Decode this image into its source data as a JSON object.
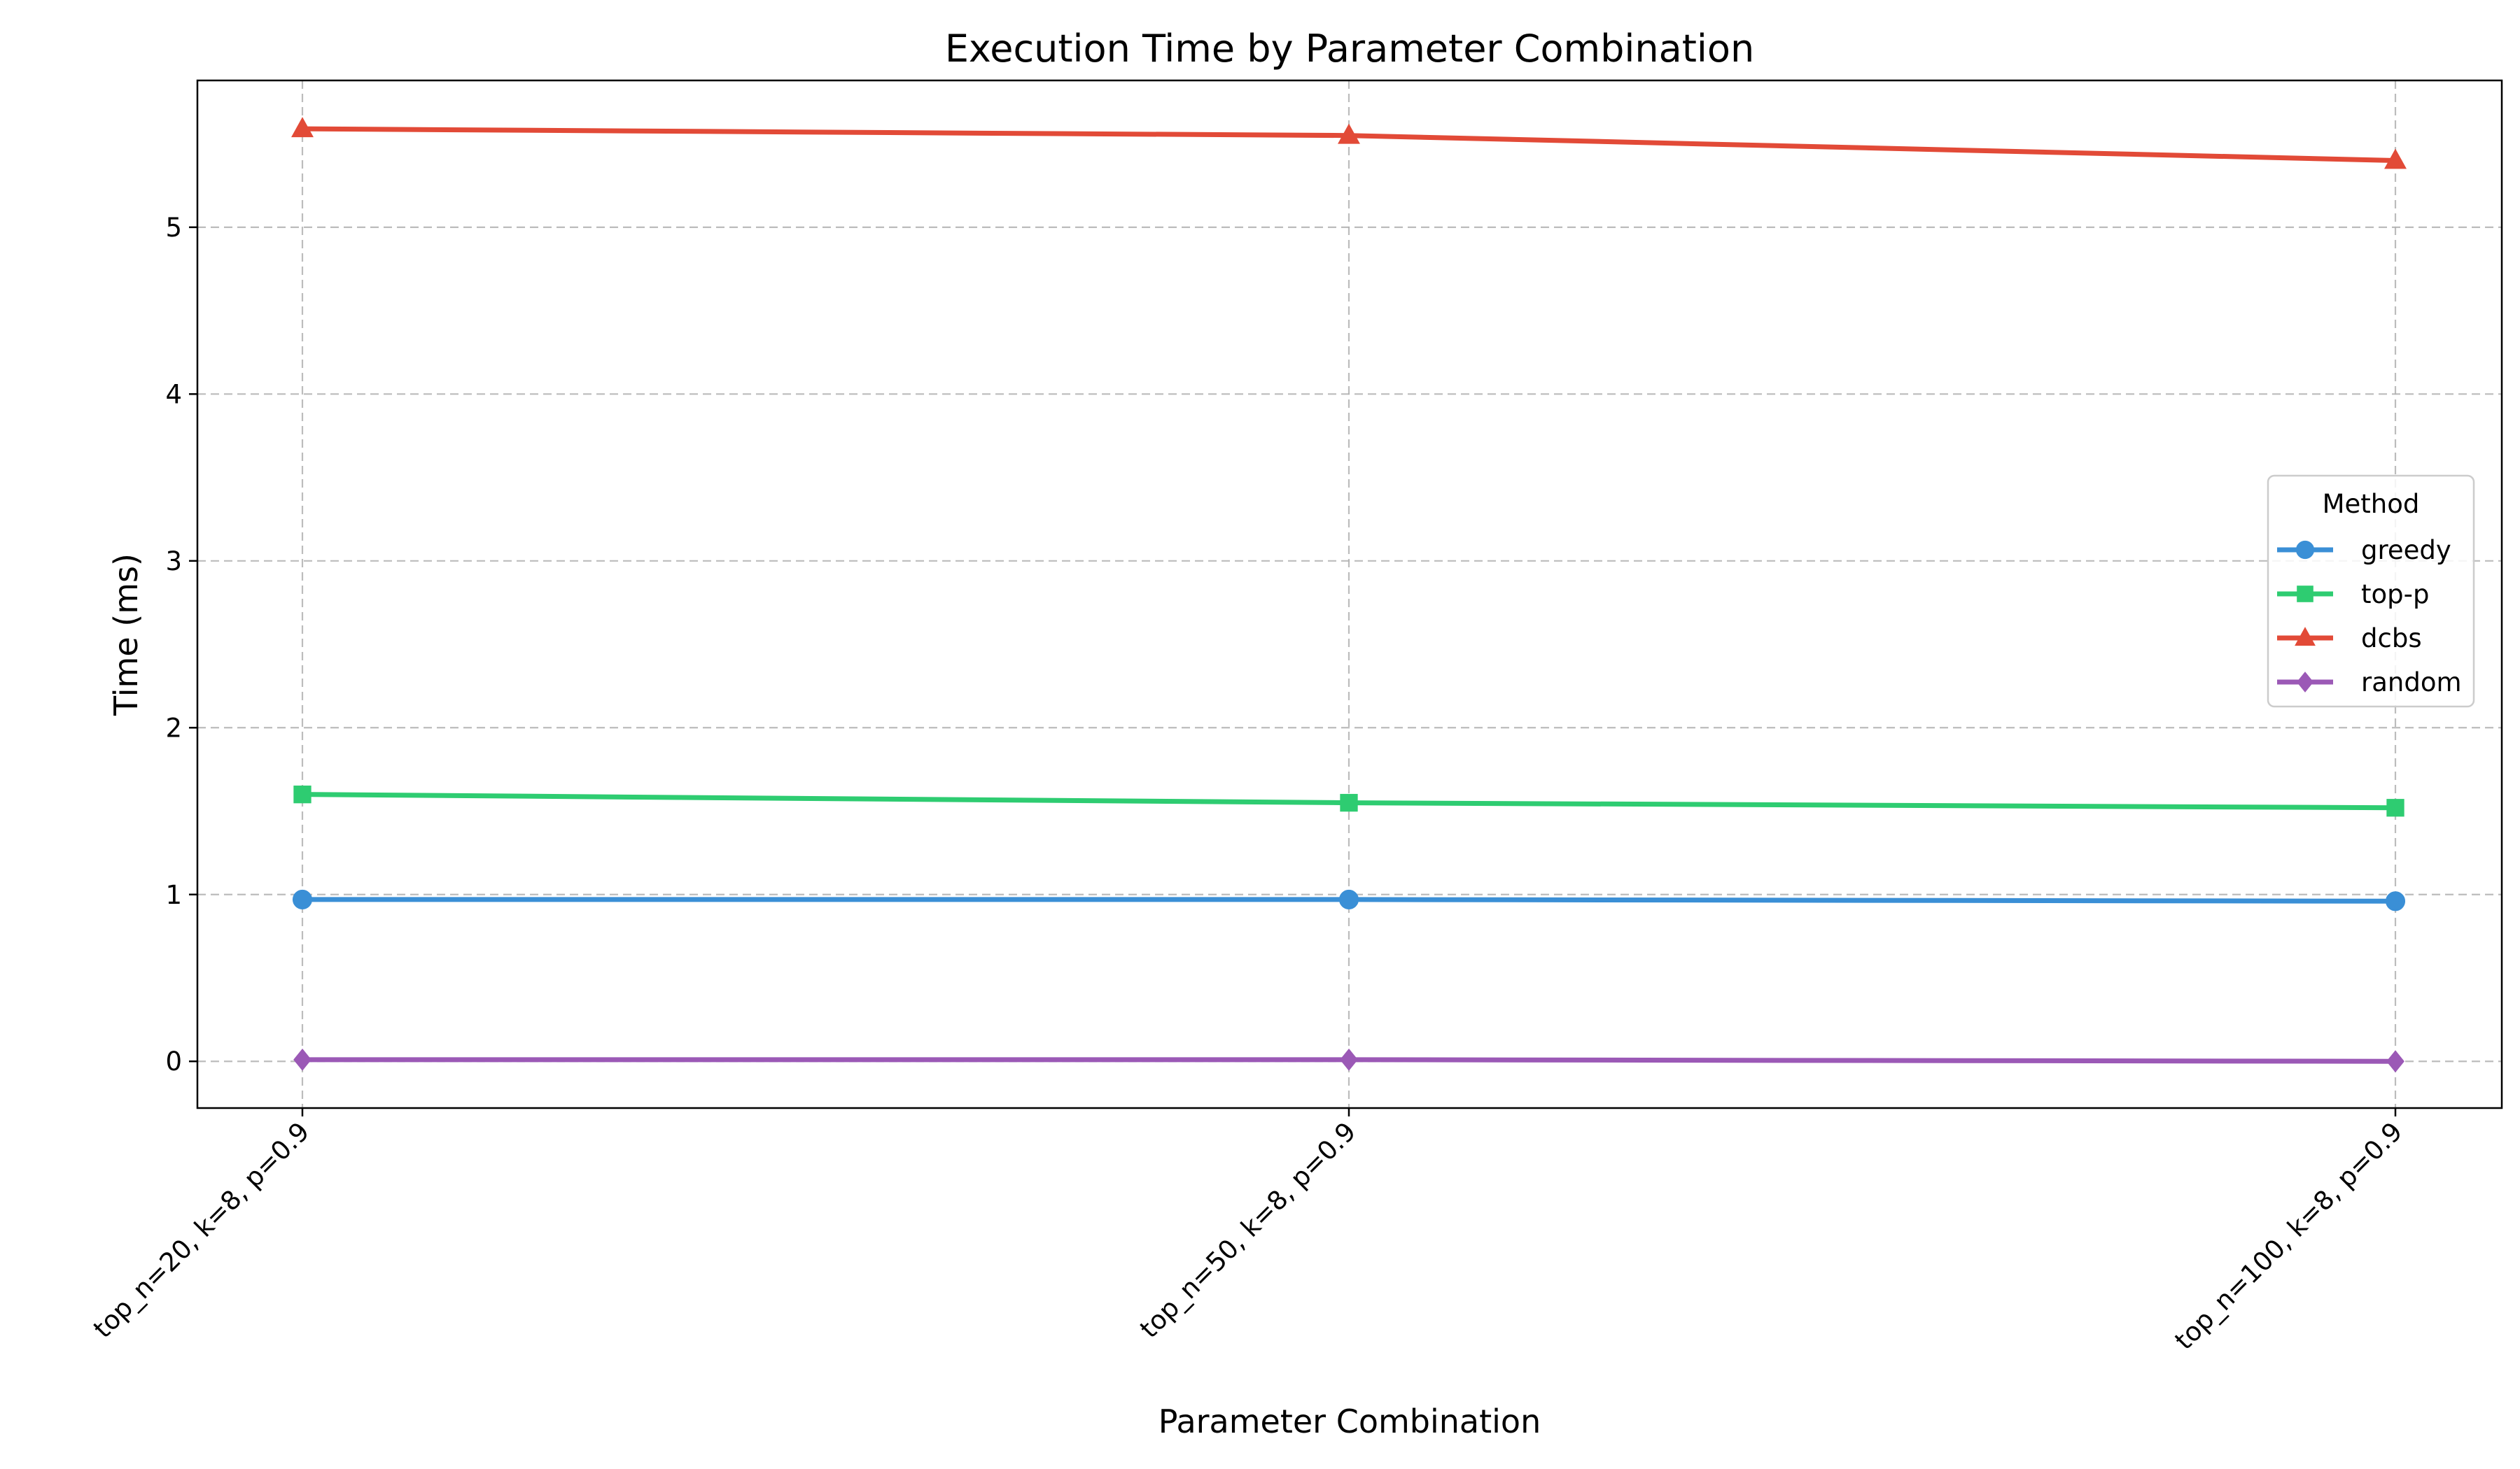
{
  "chart_data": {
    "type": "line",
    "title": "Execution Time by Parameter Combination",
    "xlabel": "Parameter Combination",
    "ylabel": "Time (ms)",
    "categories": [
      "top_n=20, k=8, p=0.9",
      "top_n=50, k=8, p=0.9",
      "top_n=100, k=8, p=0.9"
    ],
    "ylim": [
      -0.28,
      5.88
    ],
    "yticks": [
      0,
      1,
      2,
      3,
      4,
      5
    ],
    "grid": true,
    "legend": {
      "title": "Method",
      "placement": "center-right"
    },
    "series": [
      {
        "name": "greedy",
        "color": "#3a8fd6",
        "marker": "circle",
        "values": [
          0.97,
          0.97,
          0.96
        ]
      },
      {
        "name": "top-p",
        "color": "#2ecc71",
        "marker": "square",
        "values": [
          1.6,
          1.55,
          1.52
        ]
      },
      {
        "name": "dcbs",
        "color": "#e24a37",
        "marker": "triangle",
        "values": [
          5.59,
          5.55,
          5.4
        ]
      },
      {
        "name": "random",
        "color": "#9b59b6",
        "marker": "diamond",
        "values": [
          0.01,
          0.01,
          0.0
        ]
      }
    ]
  }
}
